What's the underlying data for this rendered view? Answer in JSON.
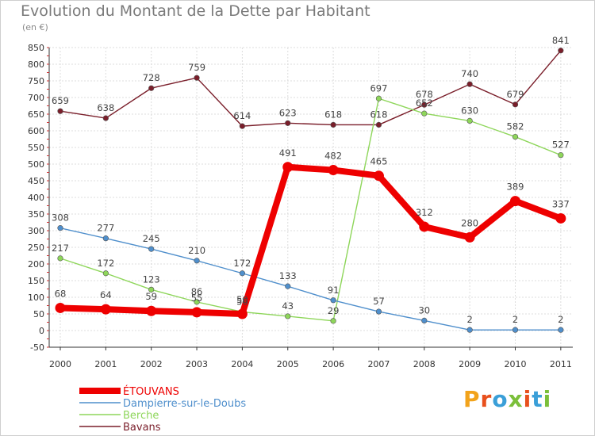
{
  "header": {
    "title": "Evolution du Montant de la Dette par Habitant",
    "subtitle": "(en €)"
  },
  "logo": {
    "text": "Proxiti",
    "colors": [
      "#f2a31b",
      "#e8501d",
      "#3a9fd8",
      "#7bbf3a",
      "#e8501d",
      "#3a9fd8",
      "#7bbf3a"
    ]
  },
  "chart_data": {
    "type": "line",
    "title": "Evolution du Montant de la Dette par Habitant",
    "ylabel": "(en €)",
    "xlabel": "",
    "x": [
      "2000",
      "2001",
      "2002",
      "2003",
      "2004",
      "2005",
      "2006",
      "2007",
      "2008",
      "2009",
      "2010",
      "2011"
    ],
    "ylim": [
      -50,
      850
    ],
    "yticks": [
      -50,
      0,
      50,
      100,
      150,
      200,
      250,
      300,
      350,
      400,
      450,
      500,
      550,
      600,
      650,
      700,
      750,
      800,
      850
    ],
    "grid": true,
    "legend": "bottom-left",
    "series": [
      {
        "name": "ÉTOUVANS",
        "color": "#ee0000",
        "values": [
          68,
          64,
          59,
          55,
          50,
          491,
          482,
          465,
          312,
          280,
          389,
          337
        ]
      },
      {
        "name": "Dampierre-sur-le-Doubs",
        "color": "#4f8fcc",
        "values": [
          308,
          277,
          245,
          210,
          172,
          133,
          91,
          57,
          30,
          2,
          2,
          2
        ]
      },
      {
        "name": "Berche",
        "color": "#8ed65a",
        "values": [
          217,
          172,
          123,
          86,
          56,
          43,
          29,
          697,
          652,
          630,
          582,
          527
        ]
      },
      {
        "name": "Bavans",
        "color": "#7a1e2a",
        "values": [
          659,
          638,
          728,
          759,
          614,
          623,
          618,
          618,
          678,
          740,
          679,
          841
        ]
      }
    ]
  }
}
